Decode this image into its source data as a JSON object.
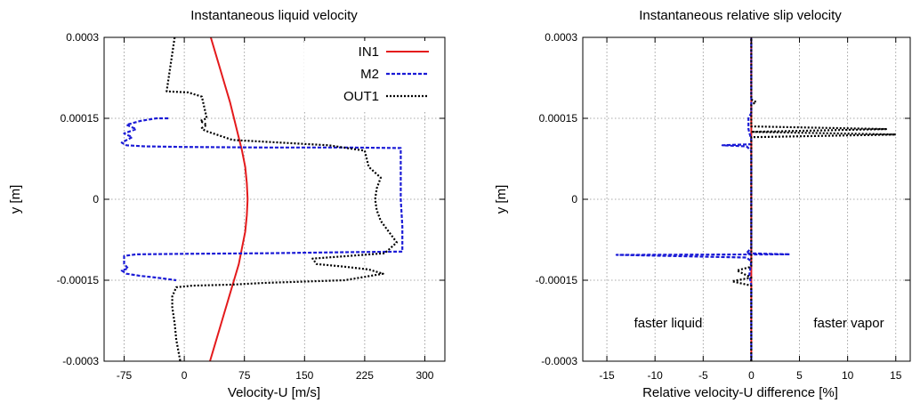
{
  "chart_data": [
    {
      "type": "line",
      "title": "Instantaneous liquid velocity",
      "xlabel": "Velocity-U [m/s]",
      "ylabel": "y [m]",
      "xlim": [
        -100,
        325
      ],
      "ylim": [
        -0.0003,
        0.0003
      ],
      "xticks": [
        -75,
        0,
        75,
        150,
        225,
        300
      ],
      "xtick_labels": [
        "-75",
        "0",
        "75",
        "150",
        "225",
        "300"
      ],
      "yticks": [
        -0.0003,
        -0.00015,
        0,
        0.00015,
        0.0003
      ],
      "ytick_labels": [
        "-0.0003",
        "-0.00015",
        "0",
        "0.00015",
        "0.0003"
      ],
      "grid": true,
      "legend": "top-right",
      "series": [
        {
          "name": "IN1",
          "color": "#e41a1c",
          "style": "solid",
          "points": [
            [
              32,
              -0.0003
            ],
            [
              38,
              -0.00027
            ],
            [
              44,
              -0.00024
            ],
            [
              50,
              -0.00021
            ],
            [
              56,
              -0.00018
            ],
            [
              62,
              -0.00015
            ],
            [
              68,
              -0.00012
            ],
            [
              72,
              -9e-05
            ],
            [
              76,
              -6e-05
            ],
            [
              78,
              -3e-05
            ],
            [
              79,
              0
            ],
            [
              78,
              3e-05
            ],
            [
              76,
              6e-05
            ],
            [
              72,
              9e-05
            ],
            [
              67,
              0.00012
            ],
            [
              62,
              0.00015
            ],
            [
              57,
              0.00018
            ],
            [
              51,
              0.00021
            ],
            [
              45,
              0.00024
            ],
            [
              39,
              0.00027
            ],
            [
              33,
              0.0003
            ]
          ]
        },
        {
          "name": "M2",
          "color": "#1a1ad6",
          "style": "dashed",
          "points": [
            [
              -20,
              0.00015
            ],
            [
              -35,
              0.00015
            ],
            [
              -55,
              0.000145
            ],
            [
              -72,
              0.000138
            ],
            [
              -60,
              0.00013
            ],
            [
              -75,
              0.000122
            ],
            [
              -65,
              0.000115
            ],
            [
              -78,
              0.000105
            ],
            [
              -72,
              0.0001
            ],
            [
              -50,
              9.8e-05
            ],
            [
              0,
              9.7e-05
            ],
            [
              100,
              9.6e-05
            ],
            [
              200,
              9.6e-05
            ],
            [
              270,
              9.5e-05
            ],
            [
              270,
              5e-05
            ],
            [
              270,
              0
            ],
            [
              272,
              -5e-05
            ],
            [
              272,
              -9.7e-05
            ],
            [
              200,
              -9.8e-05
            ],
            [
              100,
              -0.0001
            ],
            [
              0,
              -0.000101
            ],
            [
              -60,
              -0.000102
            ],
            [
              -75,
              -0.000105
            ],
            [
              -75,
              -0.00012
            ],
            [
              -70,
              -0.000128
            ],
            [
              -78,
              -0.000132
            ],
            [
              -72,
              -0.000138
            ],
            [
              -55,
              -0.000142
            ],
            [
              -35,
              -0.000145
            ],
            [
              -10,
              -0.00015
            ]
          ]
        },
        {
          "name": "OUT1",
          "color": "#000000",
          "style": "dotted",
          "points": [
            [
              -12,
              0.0003
            ],
            [
              -15,
              0.00027
            ],
            [
              -18,
              0.00024
            ],
            [
              -22,
              0.0002
            ],
            [
              5,
              0.000198
            ],
            [
              22,
              0.00019
            ],
            [
              28,
              0.00015
            ],
            [
              20,
              0.000145
            ],
            [
              28,
              0.000138
            ],
            [
              22,
              0.000132
            ],
            [
              25,
              0.000128
            ],
            [
              30,
              0.000125
            ],
            [
              40,
              0.00012
            ],
            [
              60,
              0.00011
            ],
            [
              120,
              0.000105
            ],
            [
              180,
              0.0001
            ],
            [
              225,
              9e-05
            ],
            [
              230,
              6e-05
            ],
            [
              245,
              4e-05
            ],
            [
              240,
              2e-05
            ],
            [
              238,
              0
            ],
            [
              240,
              -2e-05
            ],
            [
              245,
              -4e-05
            ],
            [
              255,
              -6e-05
            ],
            [
              265,
              -8e-05
            ],
            [
              250,
              -0.0001
            ],
            [
              160,
              -0.00011
            ],
            [
              165,
              -0.00012
            ],
            [
              200,
              -0.000125
            ],
            [
              230,
              -0.00013
            ],
            [
              248,
              -0.000138
            ],
            [
              200,
              -0.00015
            ],
            [
              100,
              -0.000155
            ],
            [
              60,
              -0.000158
            ],
            [
              10,
              -0.00016
            ],
            [
              -10,
              -0.000163
            ],
            [
              -15,
              -0.00018
            ],
            [
              -15,
              -0.0002
            ],
            [
              -12,
              -0.00023
            ],
            [
              -10,
              -0.00026
            ],
            [
              -5,
              -0.0003
            ]
          ]
        }
      ]
    },
    {
      "type": "line",
      "title": "Instantaneous relative slip velocity",
      "xlabel": "Relative velocity-U difference [%]",
      "ylabel": "y [m]",
      "xlim": [
        -17.5,
        16.5
      ],
      "ylim": [
        -0.0003,
        0.0003
      ],
      "xticks": [
        -15,
        -10,
        -5,
        0,
        5,
        10,
        15
      ],
      "xtick_labels": [
        "-15",
        "-10",
        "-5",
        "0",
        "5",
        "10",
        "15"
      ],
      "yticks": [
        -0.0003,
        -0.00015,
        0,
        0.00015,
        0.0003
      ],
      "ytick_labels": [
        "-0.0003",
        "-0.00015",
        "0",
        "0.00015",
        "0.0003"
      ],
      "grid": true,
      "annotations": [
        "faster liquid",
        "faster vapor"
      ],
      "series": [
        {
          "color": "#e41a1c",
          "style": "solid",
          "points": [
            [
              0,
              -0.0003
            ],
            [
              0,
              0.0003
            ]
          ]
        },
        {
          "color": "#1a1ad6",
          "style": "dashed",
          "points": [
            [
              0,
              -0.0003
            ],
            [
              0,
              -0.00016
            ],
            [
              -0.2,
              -0.00014
            ],
            [
              0,
              -0.000115
            ],
            [
              -0.5,
              -0.000108
            ],
            [
              -14,
              -0.000103
            ],
            [
              4,
              -0.000102
            ],
            [
              -0.5,
              -0.0001
            ],
            [
              0,
              -9e-05
            ],
            [
              0,
              9e-05
            ],
            [
              -0.5,
              9.8e-05
            ],
            [
              -3,
              0.0001
            ],
            [
              0,
              0.000102
            ],
            [
              0,
              0.00011
            ],
            [
              -0.3,
              0.00013
            ],
            [
              -0.3,
              0.00015
            ],
            [
              0,
              0.00016
            ],
            [
              0,
              0.0003
            ]
          ]
        },
        {
          "color": "#000000",
          "style": "dotted",
          "points": [
            [
              0,
              -0.0003
            ],
            [
              0,
              -0.00016
            ],
            [
              -2,
              -0.000152
            ],
            [
              0,
              -0.000145
            ],
            [
              -1.5,
              -0.000132
            ],
            [
              0,
              -0.000125
            ],
            [
              0,
              0.000115
            ],
            [
              15,
              0.00012
            ],
            [
              0,
              0.000125
            ],
            [
              14,
              0.00013
            ],
            [
              0,
              0.000135
            ],
            [
              0,
              0.000175
            ],
            [
              0.5,
              0.00018
            ],
            [
              0,
              0.000185
            ],
            [
              0,
              0.0003
            ]
          ]
        }
      ]
    }
  ]
}
